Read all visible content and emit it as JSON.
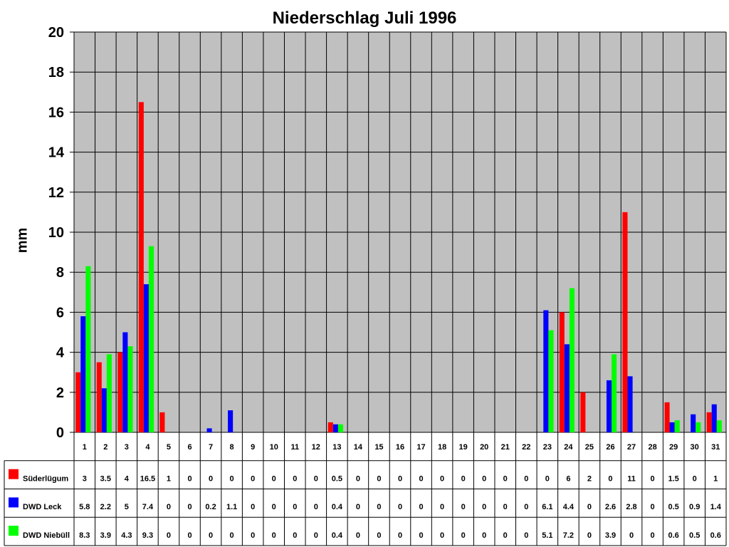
{
  "chart_data": {
    "type": "bar",
    "title": "Niederschlag Juli 1996",
    "ylabel": "mm",
    "xlabel": "",
    "ylim": [
      0,
      20
    ],
    "yticks": [
      0,
      2,
      4,
      6,
      8,
      10,
      12,
      14,
      16,
      18,
      20
    ],
    "grid": true,
    "legend": "data-table-left",
    "categories": [
      "1",
      "2",
      "3",
      "4",
      "5",
      "6",
      "7",
      "8",
      "9",
      "10",
      "11",
      "12",
      "13",
      "14",
      "15",
      "16",
      "17",
      "18",
      "19",
      "20",
      "21",
      "22",
      "23",
      "24",
      "25",
      "26",
      "27",
      "28",
      "29",
      "30",
      "31"
    ],
    "series": [
      {
        "name": "Süderlügum",
        "color": "#ff0000",
        "values": [
          3,
          3.5,
          4,
          16.5,
          1,
          0,
          0,
          0,
          0,
          0,
          0,
          0,
          0.5,
          0,
          0,
          0,
          0,
          0,
          0,
          0,
          0,
          0,
          0,
          6,
          2,
          0,
          11,
          0,
          1.5,
          0,
          1
        ]
      },
      {
        "name": "DWD Leck",
        "color": "#0000ff",
        "values": [
          5.8,
          2.2,
          5,
          7.4,
          0,
          0,
          0.2,
          1.1,
          0,
          0,
          0,
          0,
          0.4,
          0,
          0,
          0,
          0,
          0,
          0,
          0,
          0,
          0,
          6.1,
          4.4,
          0,
          2.6,
          2.8,
          0,
          0.5,
          0.9,
          1.4
        ]
      },
      {
        "name": "DWD Niebüll",
        "color": "#00ff00",
        "values": [
          8.3,
          3.9,
          4.3,
          9.3,
          0,
          0,
          0,
          0,
          0,
          0,
          0,
          0,
          0.4,
          0,
          0,
          0,
          0,
          0,
          0,
          0,
          0,
          0,
          5.1,
          7.2,
          0,
          3.9,
          0,
          0,
          0.6,
          0.5,
          0.6
        ]
      }
    ],
    "colors": {
      "plot_background": "#c0c0c0",
      "grid": "#000000"
    }
  }
}
